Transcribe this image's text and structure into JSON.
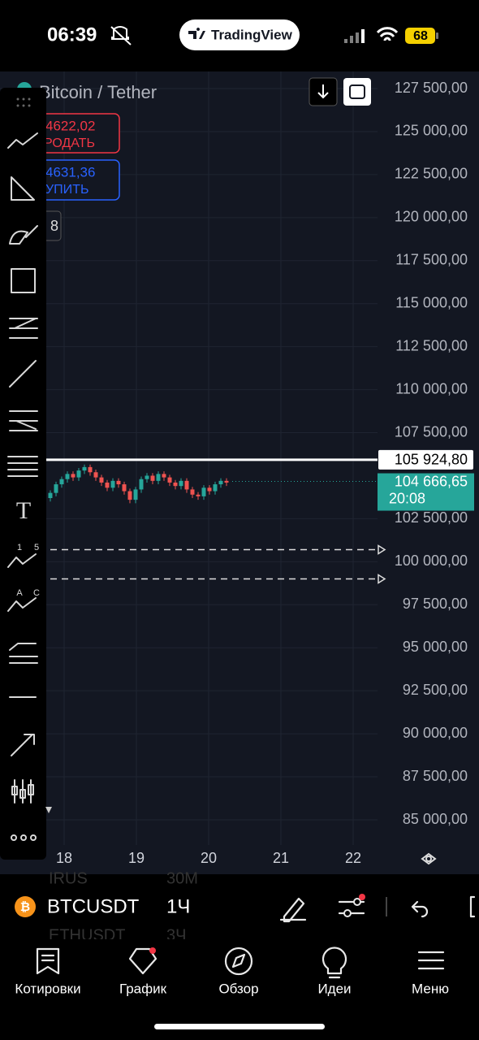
{
  "status_bar": {
    "time": "06:39",
    "app": "TradingView",
    "battery": "68"
  },
  "chart": {
    "title": "Bitcoin / Tether",
    "sell": {
      "price": "4622,02",
      "label": "РОДАТЬ"
    },
    "buy": {
      "price": "4631,36",
      "label": "УПИТЬ"
    },
    "quantity": "8",
    "ylim": [
      85000,
      127500
    ],
    "yticks": [
      {
        "value": 127500,
        "label": "127 500,00"
      },
      {
        "value": 125000,
        "label": "125 000,00"
      },
      {
        "value": 122500,
        "label": "122 500,00"
      },
      {
        "value": 120000,
        "label": "120 000,00"
      },
      {
        "value": 117500,
        "label": "117 500,00"
      },
      {
        "value": 115000,
        "label": "115 000,00"
      },
      {
        "value": 112500,
        "label": "112 500,00"
      },
      {
        "value": 110000,
        "label": "110 000,00"
      },
      {
        "value": 107500,
        "label": "107 500,00"
      },
      {
        "value": 102500,
        "label": "102 500,00"
      },
      {
        "value": 100000,
        "label": "100 000,00"
      },
      {
        "value": 97500,
        "label": "97 500,00"
      },
      {
        "value": 95000,
        "label": "95 000,00"
      },
      {
        "value": 92500,
        "label": "92 500,00"
      },
      {
        "value": 90000,
        "label": "90 000,00"
      },
      {
        "value": 87500,
        "label": "87 500,00"
      },
      {
        "value": 85000,
        "label": "85 000,00"
      }
    ],
    "x_labels": [
      "18",
      "19",
      "20",
      "21",
      "22"
    ],
    "horizontal_line": {
      "value": 105924.8,
      "label": "105 924,80"
    },
    "last_price": {
      "value": 104666.65,
      "label": "104 666,65",
      "countdown": "20:08"
    },
    "alert_levels": [
      100700,
      99000
    ],
    "candles": {
      "open": [
        103700,
        104000,
        104500,
        104800,
        105100,
        104900,
        105300,
        105500,
        105200,
        104900,
        104600,
        104300,
        104700,
        104500,
        104100,
        103600,
        104200,
        104800,
        105000,
        104700,
        105100,
        104900,
        104600,
        104400,
        104700,
        104200,
        103900,
        103800,
        104300,
        104100,
        104500,
        104700
      ],
      "high": [
        104150,
        104650,
        104950,
        105250,
        105250,
        105450,
        105650,
        105650,
        105350,
        105050,
        104750,
        104850,
        104850,
        104650,
        104250,
        104350,
        104950,
        105150,
        105150,
        105250,
        105250,
        105050,
        104750,
        104850,
        104850,
        104350,
        104050,
        104450,
        104450,
        104650,
        104850,
        104850
      ],
      "low": [
        103500,
        103800,
        104300,
        104600,
        104700,
        104700,
        105100,
        105000,
        104700,
        104400,
        104100,
        104100,
        104300,
        103900,
        103400,
        103400,
        104000,
        104600,
        104500,
        104500,
        104700,
        104400,
        104200,
        104200,
        104000,
        103700,
        103600,
        103600,
        103900,
        103900,
        104300,
        104400
      ],
      "close": [
        104000,
        104500,
        104800,
        105100,
        104900,
        105300,
        105500,
        105200,
        104900,
        104600,
        104300,
        104700,
        104500,
        104100,
        103600,
        104200,
        104800,
        105000,
        104700,
        105100,
        104900,
        104600,
        104400,
        104700,
        104200,
        103900,
        103800,
        104300,
        104100,
        104500,
        104700,
        104600
      ]
    },
    "toolbar_labels": {
      "elliott": [
        "1",
        "5"
      ],
      "abcd": [
        "A",
        "C"
      ],
      "text_tool": "T"
    }
  },
  "symbol_bar": {
    "symbol": "BTCUSDT",
    "interval": "1Ч",
    "ghost_rows": [
      {
        "symbol": "IRUS",
        "interval": "30M"
      },
      {
        "symbol": "ETHUSDT",
        "interval": "3Ч"
      }
    ]
  },
  "nav": [
    "Котировки",
    "График",
    "Обзор",
    "Идеи",
    "Меню"
  ]
}
